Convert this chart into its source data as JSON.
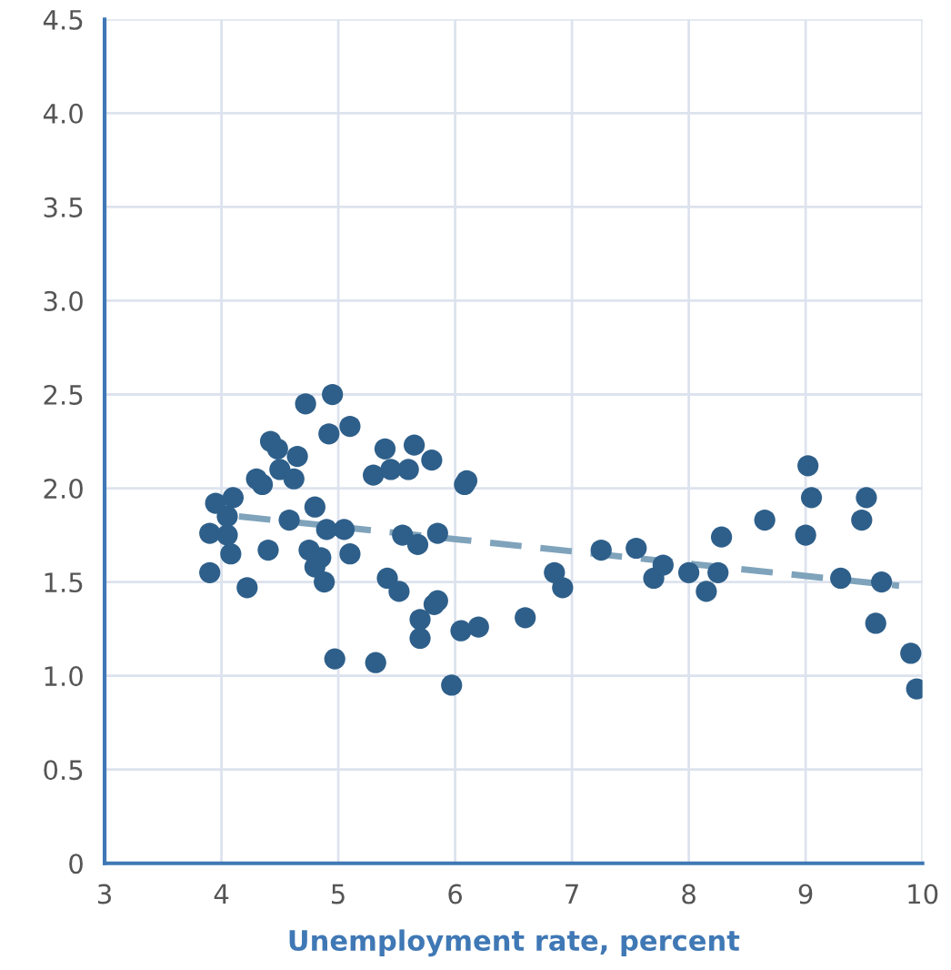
{
  "chart_data": {
    "type": "scatter",
    "xlabel": "Unemployment rate, percent",
    "xlim": [
      3,
      10
    ],
    "xticks": [
      3,
      4,
      5,
      6,
      7,
      8,
      9,
      10
    ],
    "ylim": [
      0,
      4.5
    ],
    "yticks": [
      0,
      0.5,
      {
        "value": 1,
        "label": "1.0"
      },
      1.5,
      {
        "value": 2,
        "label": "2.0"
      },
      2.5,
      {
        "value": 3,
        "label": "3.0"
      },
      3.5,
      {
        "value": 4,
        "label": "4.0"
      },
      4.5
    ],
    "grid": true,
    "marker": "circle",
    "series": [
      {
        "color": "#2e5f8a",
        "x": [
          3.9,
          3.9,
          3.95,
          4.05,
          4.05,
          4.08,
          4.1,
          4.22,
          4.3,
          4.35,
          4.4,
          4.42,
          4.48,
          4.5,
          4.58,
          4.62,
          4.65,
          4.72,
          4.75,
          4.8,
          4.8,
          4.85,
          4.88,
          4.9,
          4.92,
          4.95,
          4.97,
          5.05,
          5.1,
          5.1,
          5.3,
          5.32,
          5.4,
          5.42,
          5.45,
          5.52,
          5.55,
          5.6,
          5.65,
          5.68,
          5.7,
          5.7,
          5.8,
          5.82,
          5.85,
          5.85,
          5.97,
          6.05,
          6.08,
          6.1,
          6.2,
          6.6,
          6.85,
          6.92,
          7.25,
          7.55,
          7.7,
          7.78,
          8.0,
          8.15,
          8.25,
          8.28,
          8.65,
          9.0,
          9.02,
          9.05,
          9.3,
          9.48,
          9.52,
          9.6,
          9.65,
          9.9,
          9.95
        ],
        "values": [
          1.55,
          1.76,
          1.92,
          1.75,
          1.85,
          1.65,
          1.95,
          1.47,
          2.05,
          2.02,
          1.67,
          2.25,
          2.21,
          2.1,
          1.83,
          2.05,
          2.17,
          2.45,
          1.67,
          1.58,
          1.9,
          1.63,
          1.5,
          1.78,
          2.29,
          2.5,
          1.09,
          1.78,
          2.33,
          1.65,
          2.07,
          1.07,
          2.21,
          1.52,
          2.1,
          1.45,
          1.75,
          2.1,
          2.23,
          1.7,
          1.3,
          1.2,
          2.15,
          1.38,
          1.76,
          1.4,
          0.95,
          1.24,
          2.02,
          2.04,
          1.26,
          1.31,
          1.55,
          1.47,
          1.67,
          1.68,
          1.52,
          1.59,
          1.55,
          1.45,
          1.55,
          1.74,
          1.83,
          1.75,
          2.12,
          1.95,
          1.52,
          1.83,
          1.95,
          1.28,
          1.5,
          1.12,
          0.93
        ]
      },
      {
        "type": "line",
        "color": "#7fa3bb",
        "line_style": "dashed",
        "marker": "none",
        "x": [
          4.15,
          9.8
        ],
        "values": [
          1.85,
          1.48
        ]
      }
    ]
  }
}
